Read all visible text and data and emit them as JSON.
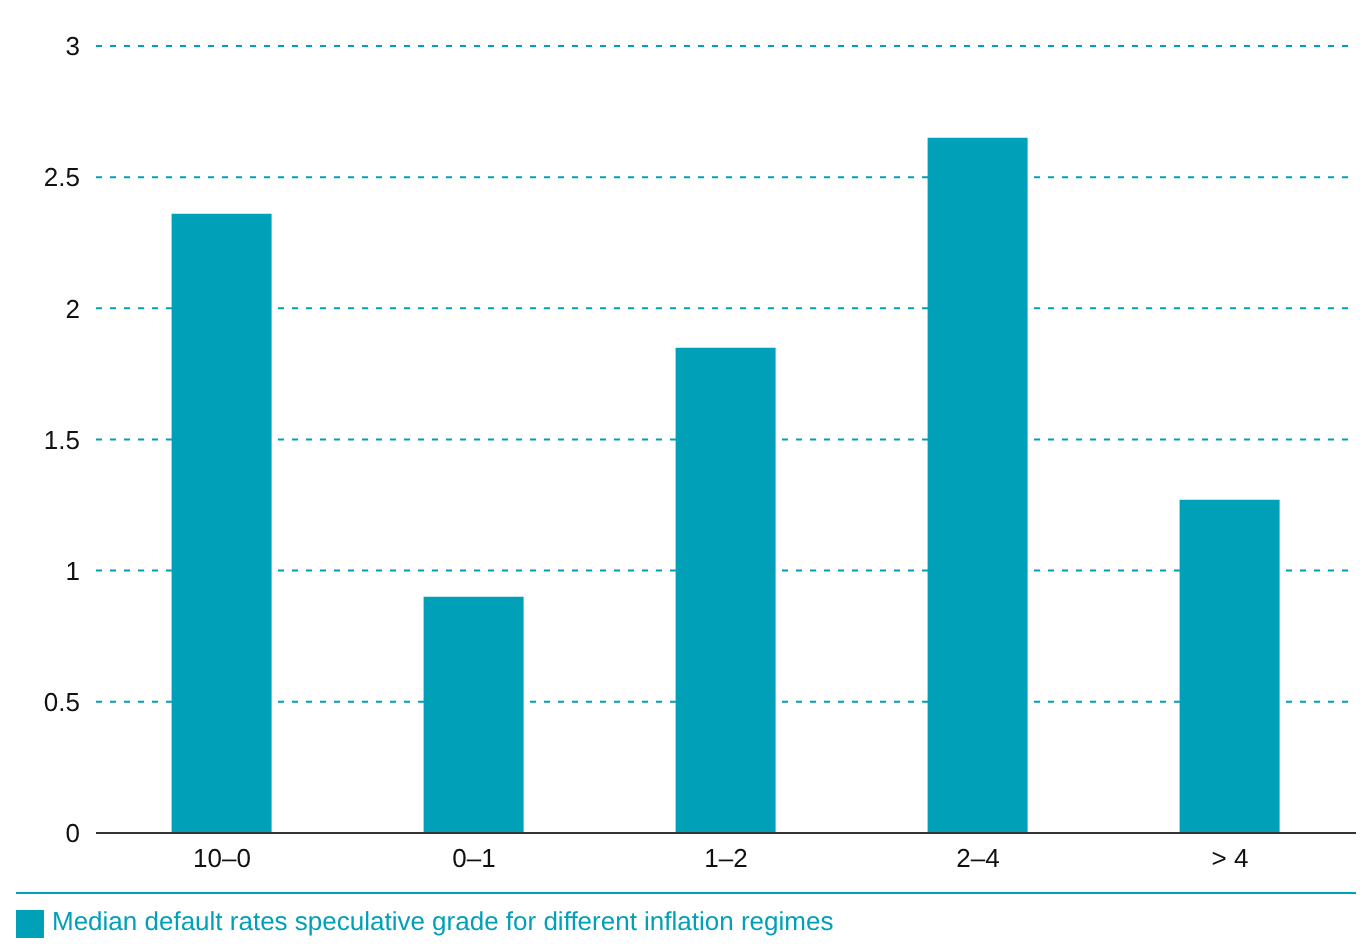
{
  "chart_data": {
    "type": "bar",
    "categories": [
      "10–0",
      "0–1",
      "1–2",
      "2–4",
      "> 4"
    ],
    "series": [
      {
        "name": "Median default rates speculative grade for different inflation regimes",
        "color": "#00a0b8",
        "values": [
          2.36,
          0.9,
          1.85,
          2.65,
          1.27
        ]
      }
    ],
    "ylim": [
      0,
      3
    ],
    "yticks": [
      0,
      0.5,
      1,
      1.5,
      2,
      2.5,
      3
    ],
    "grid": "y",
    "legend": "bottom"
  }
}
